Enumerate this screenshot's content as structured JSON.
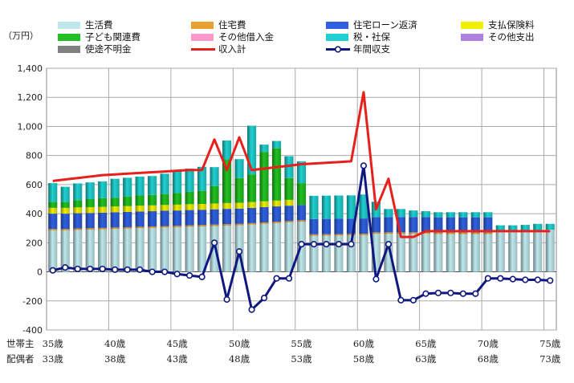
{
  "chart_data": {
    "type": "bar",
    "unit_label": "（万円）",
    "ylim": [
      -400,
      1400
    ],
    "yticks": [
      -400,
      -200,
      0,
      200,
      400,
      600,
      800,
      1000,
      1200,
      1400
    ],
    "ytick_labels": [
      "-400",
      "-200",
      "0",
      "200",
      "400",
      "600",
      "800",
      "1,000",
      "1,200",
      "1,400"
    ],
    "row_labels": {
      "head": "世帯主",
      "spouse": "配偶者"
    },
    "head_ages": [
      "35歳",
      "40歳",
      "45歳",
      "50歳",
      "55歳",
      "60歳",
      "65歳",
      "70歳",
      "75歳"
    ],
    "spouse_ages": [
      "33歳",
      "38歳",
      "43歳",
      "48歳",
      "53歳",
      "58歳",
      "63歳",
      "68歳",
      "73歳"
    ],
    "age_tick_index": [
      0,
      5,
      10,
      15,
      20,
      25,
      30,
      35,
      40
    ],
    "categories": [
      35,
      36,
      37,
      38,
      39,
      40,
      41,
      42,
      43,
      44,
      45,
      46,
      47,
      48,
      49,
      50,
      51,
      52,
      53,
      54,
      55,
      56,
      57,
      58,
      59,
      60,
      61,
      62,
      63,
      64,
      65,
      66,
      67,
      68,
      69,
      70,
      71,
      72,
      73,
      74,
      75
    ],
    "series": [
      {
        "name": "生活費",
        "color": "#bfe8ec",
        "kind": "bar",
        "values": [
          285,
          285,
          288,
          290,
          292,
          295,
          297,
          300,
          302,
          305,
          307,
          310,
          312,
          315,
          318,
          320,
          325,
          330,
          335,
          340,
          345,
          248,
          249,
          250,
          251,
          252,
          262,
          262,
          262,
          262,
          262,
          260,
          260,
          260,
          260,
          260,
          280,
          280,
          283,
          285,
          290
        ]
      },
      {
        "name": "住宅費",
        "color": "#e8a030",
        "kind": "bar",
        "values": [
          10,
          10,
          10,
          10,
          10,
          10,
          10,
          10,
          10,
          10,
          10,
          10,
          10,
          10,
          10,
          10,
          10,
          10,
          10,
          10,
          10,
          10,
          10,
          10,
          10,
          10,
          10,
          10,
          10,
          10,
          10,
          10,
          10,
          10,
          10,
          10,
          0,
          0,
          0,
          0,
          0
        ]
      },
      {
        "name": "住宅ローン返済",
        "color": "#3060e0",
        "kind": "bar",
        "values": [
          105,
          105,
          105,
          105,
          105,
          105,
          105,
          105,
          105,
          105,
          105,
          105,
          105,
          105,
          105,
          105,
          105,
          105,
          105,
          105,
          105,
          105,
          105,
          105,
          105,
          105,
          105,
          105,
          105,
          105,
          105,
          105,
          105,
          105,
          105,
          105,
          0,
          0,
          0,
          0,
          0
        ]
      },
      {
        "name": "支払保険料",
        "color": "#f0f000",
        "kind": "bar",
        "values": [
          40,
          40,
          40,
          40,
          40,
          40,
          40,
          40,
          40,
          40,
          40,
          40,
          40,
          40,
          40,
          40,
          40,
          40,
          40,
          40,
          0,
          0,
          0,
          0,
          0,
          0,
          0,
          0,
          0,
          0,
          0,
          0,
          0,
          0,
          0,
          0,
          0,
          0,
          0,
          0,
          0
        ]
      },
      {
        "name": "子ども関連費",
        "color": "#22c022",
        "kind": "bar",
        "values": [
          40,
          40,
          50,
          55,
          60,
          60,
          65,
          70,
          72,
          75,
          80,
          85,
          90,
          120,
          300,
          170,
          190,
          340,
          360,
          150,
          150,
          0,
          0,
          0,
          0,
          0,
          0,
          0,
          0,
          0,
          0,
          0,
          0,
          0,
          0,
          0,
          0,
          0,
          0,
          0,
          0
        ]
      },
      {
        "name": "その他借入金",
        "color": "#ff99cc",
        "kind": "bar",
        "values": [
          0,
          0,
          0,
          0,
          0,
          0,
          0,
          0,
          0,
          0,
          0,
          0,
          0,
          0,
          0,
          0,
          0,
          0,
          0,
          0,
          0,
          0,
          0,
          0,
          0,
          0,
          0,
          0,
          0,
          0,
          0,
          0,
          0,
          0,
          0,
          0,
          0,
          0,
          0,
          0,
          0
        ]
      },
      {
        "name": "税・社保",
        "color": "#20d0d0",
        "kind": "bar",
        "values": [
          130,
          105,
          115,
          115,
          115,
          130,
          130,
          130,
          130,
          140,
          155,
          160,
          165,
          130,
          130,
          130,
          335,
          50,
          50,
          150,
          150,
          160,
          160,
          160,
          160,
          165,
          105,
          55,
          55,
          45,
          40,
          35,
          35,
          35,
          35,
          35,
          40,
          40,
          40,
          45,
          40
        ]
      },
      {
        "name": "その他支出",
        "color": "#b080e0",
        "kind": "bar",
        "values": [
          0,
          0,
          0,
          0,
          0,
          0,
          0,
          0,
          0,
          0,
          0,
          0,
          0,
          0,
          0,
          0,
          0,
          0,
          0,
          0,
          0,
          0,
          0,
          0,
          0,
          0,
          0,
          0,
          0,
          0,
          0,
          0,
          0,
          0,
          0,
          0,
          0,
          0,
          0,
          0,
          0
        ]
      },
      {
        "name": "使途不明金",
        "color": "#808080",
        "kind": "bar",
        "values": [
          0,
          0,
          0,
          0,
          0,
          0,
          0,
          0,
          0,
          0,
          0,
          0,
          0,
          0,
          0,
          0,
          0,
          0,
          0,
          0,
          0,
          0,
          0,
          0,
          0,
          0,
          0,
          0,
          0,
          0,
          0,
          0,
          0,
          0,
          0,
          0,
          0,
          0,
          0,
          0,
          0
        ]
      },
      {
        "name": "収入計",
        "color": "#e8201c",
        "kind": "line",
        "values": [
          625,
          635,
          645,
          655,
          665,
          670,
          675,
          680,
          685,
          690,
          695,
          700,
          700,
          910,
          700,
          925,
          700,
          710,
          720,
          730,
          740,
          745,
          750,
          755,
          760,
          1235,
          430,
          640,
          240,
          240,
          280,
          280,
          280,
          280,
          280,
          280,
          280,
          280,
          280,
          280,
          280
        ]
      },
      {
        "name": "年間収支",
        "color": "#101880",
        "kind": "line_marker",
        "values": [
          10,
          30,
          20,
          20,
          20,
          15,
          15,
          15,
          0,
          0,
          -15,
          -25,
          -35,
          200,
          -190,
          140,
          -260,
          -180,
          -45,
          -45,
          190,
          190,
          190,
          190,
          190,
          730,
          -50,
          190,
          -195,
          -195,
          -150,
          -145,
          -145,
          -150,
          -150,
          -45,
          -45,
          -50,
          -55,
          -55,
          -60
        ]
      }
    ]
  }
}
